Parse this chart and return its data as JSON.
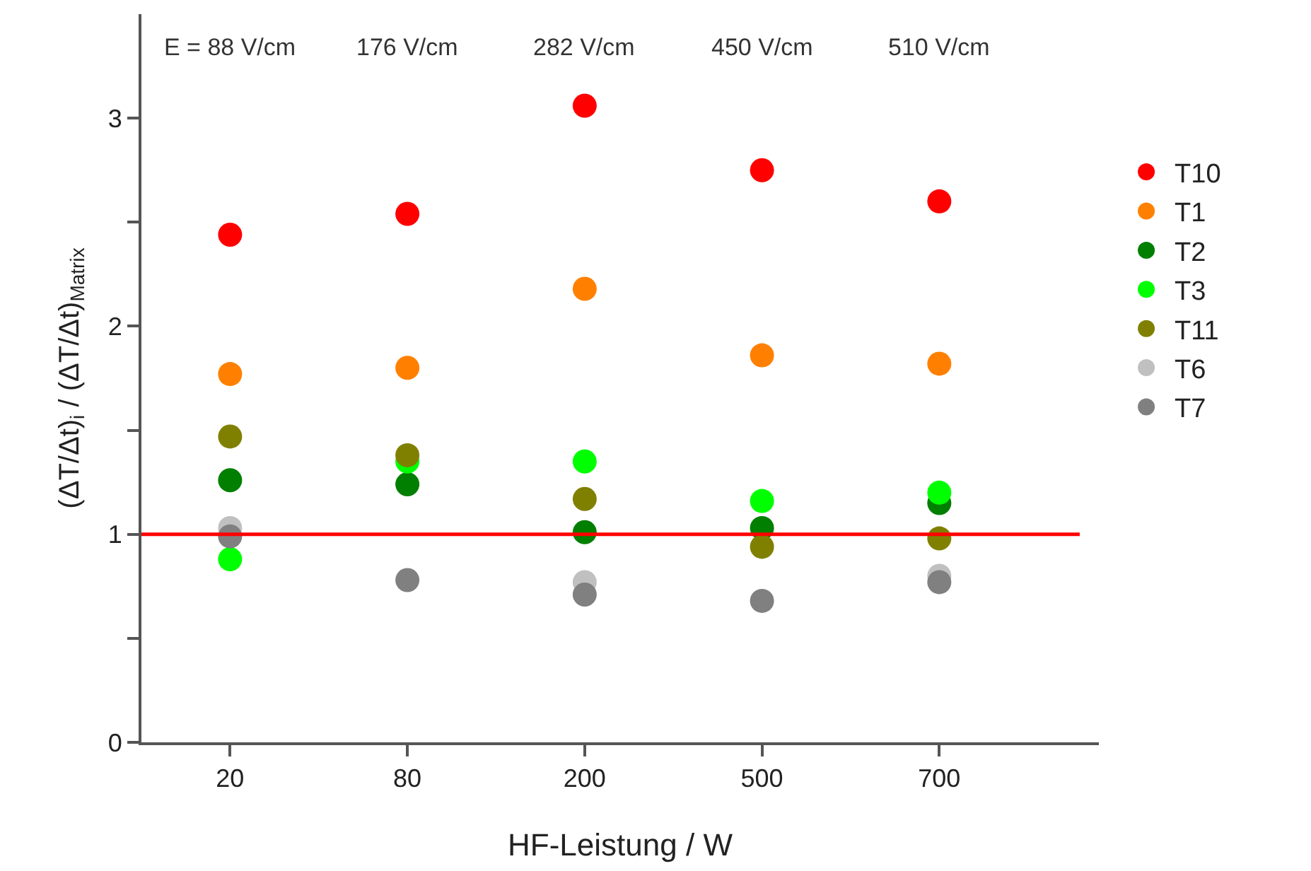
{
  "chart_data": {
    "type": "scatter",
    "xlabel": "HF-Leistung / W",
    "ylabel": "(ΔT/Δt)$_{i}$ / (ΔT/Δt)$_{Matrix}$",
    "categories": [
      "20",
      "80",
      "200",
      "500",
      "700"
    ],
    "series": [
      {
        "name": "T10",
        "color": "#ff0000",
        "values": [
          2.44,
          2.54,
          3.06,
          2.75,
          2.6
        ]
      },
      {
        "name": "T1",
        "color": "#ff8000",
        "values": [
          1.77,
          1.8,
          2.18,
          1.86,
          1.82
        ]
      },
      {
        "name": "T2",
        "color": "#007f00",
        "values": [
          1.26,
          1.24,
          1.01,
          1.03,
          1.15
        ]
      },
      {
        "name": "T3",
        "color": "#00ff00",
        "values": [
          0.88,
          1.35,
          1.35,
          1.16,
          1.2
        ]
      },
      {
        "name": "T11",
        "color": "#808000",
        "values": [
          1.47,
          1.38,
          1.17,
          0.94,
          0.98
        ]
      },
      {
        "name": "T6",
        "color": "#c0c0c0",
        "values": [
          1.03,
          null,
          0.77,
          null,
          0.8
        ]
      },
      {
        "name": "T7",
        "color": "#808080",
        "values": [
          0.99,
          0.78,
          0.71,
          0.68,
          0.77
        ]
      }
    ],
    "annotations": [
      "E = 88 V/cm",
      "176 V/cm",
      "282 V/cm",
      "450 V/cm",
      "510 V/cm"
    ],
    "ylim": [
      0,
      3.5
    ],
    "yticks": [
      0,
      {
        "value": 0.5,
        "label": null
      },
      1,
      {
        "value": 1.5,
        "label": null
      },
      2,
      {
        "value": 2.5,
        "label": null
      },
      3
    ],
    "ref_lines": [
      {
        "axis": "y",
        "value": 1,
        "color": "#ff0000",
        "line_style": "solid"
      }
    ],
    "marker": "circle",
    "legend": "right"
  }
}
